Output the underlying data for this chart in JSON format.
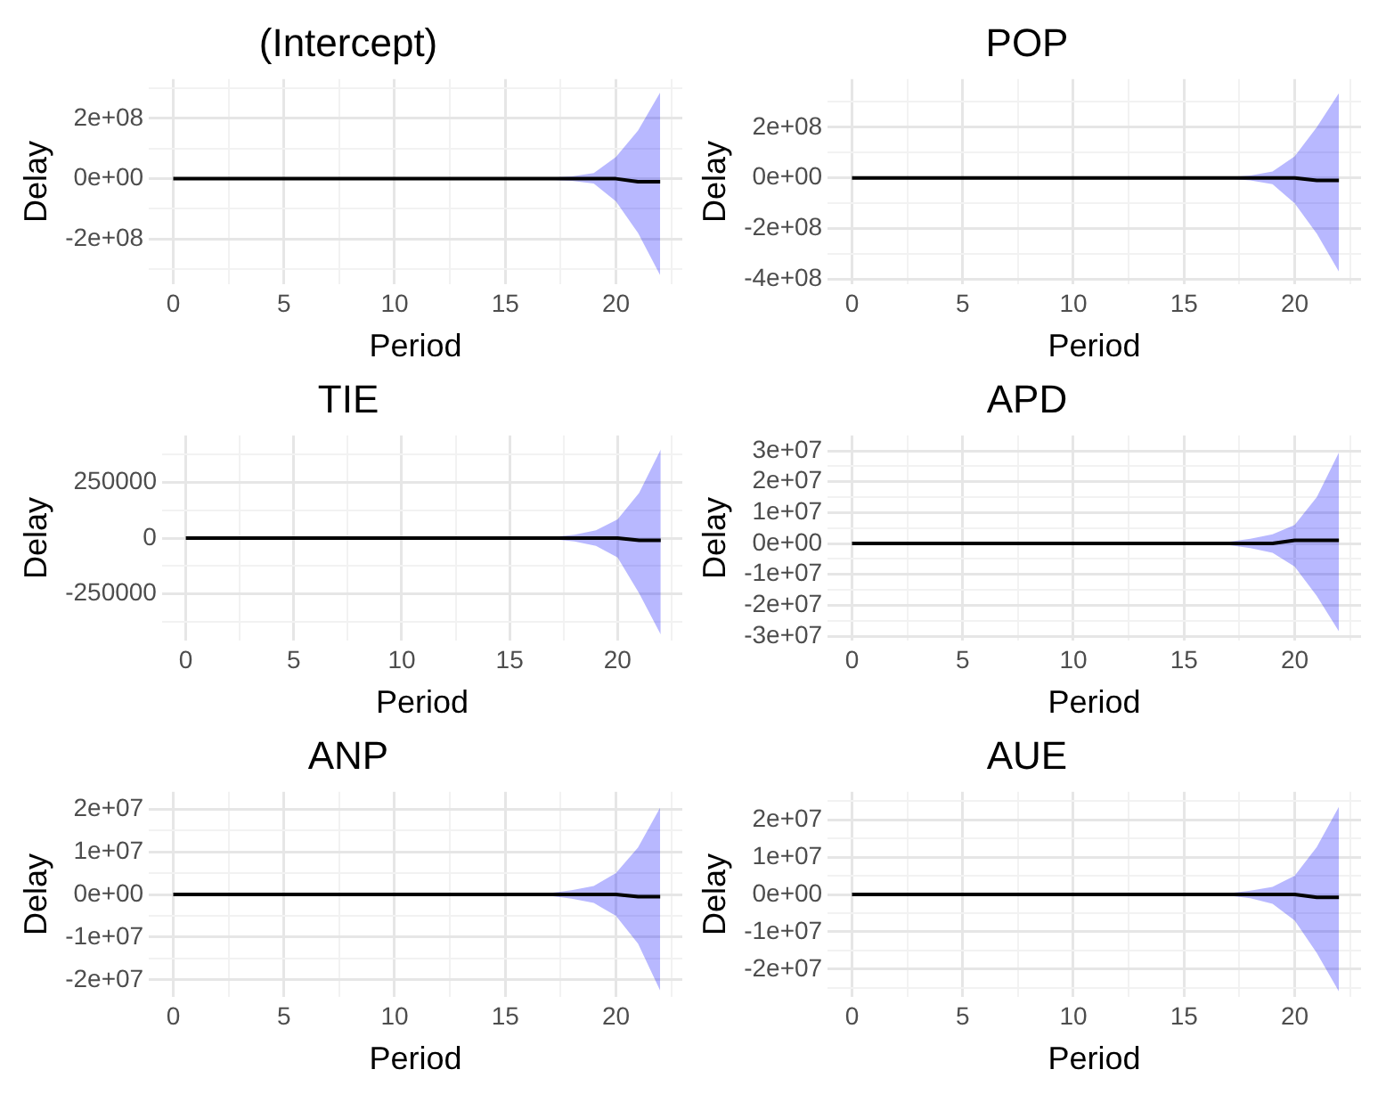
{
  "chart_data": [
    {
      "type": "line",
      "title": "(Intercept)",
      "xlabel": "Period",
      "ylabel": "Delay",
      "x": [
        0,
        1,
        2,
        3,
        4,
        5,
        6,
        7,
        8,
        9,
        10,
        11,
        12,
        13,
        14,
        15,
        16,
        17,
        18,
        19,
        20,
        21,
        22
      ],
      "xlim": [
        -1.1,
        23
      ],
      "ylim": [
        -350000000,
        330000000
      ],
      "xticks": [
        0,
        {
          "value": 2.5,
          "label": null
        },
        5,
        {
          "value": 7.5,
          "label": null
        },
        10,
        {
          "value": 12.5,
          "label": null
        },
        15,
        {
          "value": 17.5,
          "label": null
        },
        20,
        {
          "value": 22.5,
          "label": null
        }
      ],
      "yticks": [
        {
          "value": -300000000,
          "label": null
        },
        {
          "value": -200000000,
          "label": "-2e+08"
        },
        {
          "value": -100000000,
          "label": null
        },
        {
          "value": 0,
          "label": "0e+00"
        },
        {
          "value": 100000000,
          "label": null
        },
        {
          "value": 200000000,
          "label": "2e+08"
        },
        {
          "value": 300000000,
          "label": null
        }
      ],
      "grid": true,
      "marker": "none",
      "line_style": "solid",
      "series": [
        {
          "color": "#000000",
          "values": [
            0,
            0,
            0,
            0,
            0,
            0,
            0,
            0,
            0,
            0,
            0,
            0,
            0,
            0,
            0,
            0,
            0,
            0,
            0,
            0,
            0,
            -10000000,
            -10000000
          ],
          "lower": [
            0,
            0,
            0,
            0,
            0,
            0,
            0,
            0,
            0,
            0,
            0,
            0,
            0,
            0,
            0,
            0,
            0,
            -3000000,
            -7000000,
            -16000000,
            -75000000,
            -180000000,
            -320000000
          ],
          "upper": [
            0,
            0,
            0,
            0,
            0,
            0,
            0,
            0,
            0,
            0,
            0,
            0,
            0,
            0,
            0,
            0,
            0,
            3000000,
            8000000,
            19000000,
            72000000,
            160000000,
            286000000
          ]
        }
      ]
    },
    {
      "type": "line",
      "title": "POP",
      "xlabel": "Period",
      "ylabel": "Delay",
      "x": [
        0,
        1,
        2,
        3,
        4,
        5,
        6,
        7,
        8,
        9,
        10,
        11,
        12,
        13,
        14,
        15,
        16,
        17,
        18,
        19,
        20,
        21,
        22
      ],
      "xlim": [
        -1.1,
        23
      ],
      "ylim": [
        -420000000,
        390000000
      ],
      "xticks": [
        0,
        {
          "value": 2.5,
          "label": null
        },
        5,
        {
          "value": 7.5,
          "label": null
        },
        10,
        {
          "value": 12.5,
          "label": null
        },
        15,
        {
          "value": 17.5,
          "label": null
        },
        20,
        {
          "value": 22.5,
          "label": null
        }
      ],
      "yticks": [
        {
          "value": -400000000,
          "label": "-4e+08"
        },
        {
          "value": -300000000,
          "label": null
        },
        {
          "value": -200000000,
          "label": "-2e+08"
        },
        {
          "value": -100000000,
          "label": null
        },
        {
          "value": 0,
          "label": "0e+00"
        },
        {
          "value": 100000000,
          "label": null
        },
        {
          "value": 200000000,
          "label": "2e+08"
        },
        {
          "value": 300000000,
          "label": null
        }
      ],
      "grid": true,
      "marker": "none",
      "line_style": "solid",
      "series": [
        {
          "color": "#000000",
          "values": [
            0,
            0,
            0,
            0,
            0,
            0,
            0,
            0,
            0,
            0,
            0,
            0,
            0,
            0,
            0,
            0,
            0,
            0,
            0,
            0,
            0,
            -10000000,
            -10000000
          ],
          "lower": [
            0,
            0,
            0,
            0,
            0,
            0,
            0,
            0,
            0,
            0,
            0,
            0,
            0,
            0,
            0,
            0,
            0,
            -3000000,
            -10000000,
            -25000000,
            -100000000,
            -220000000,
            -370000000
          ],
          "upper": [
            0,
            0,
            0,
            0,
            0,
            0,
            0,
            0,
            0,
            0,
            0,
            0,
            0,
            0,
            0,
            0,
            0,
            3000000,
            10000000,
            25000000,
            85000000,
            200000000,
            335000000
          ]
        }
      ]
    },
    {
      "type": "line",
      "title": "TIE",
      "xlabel": "Period",
      "ylabel": "Delay",
      "x": [
        0,
        1,
        2,
        3,
        4,
        5,
        6,
        7,
        8,
        9,
        10,
        11,
        12,
        13,
        14,
        15,
        16,
        17,
        18,
        19,
        20,
        21,
        22
      ],
      "xlim": [
        -1.1,
        23
      ],
      "ylim": [
        -460000.0,
        460000
      ],
      "xticks": [
        0,
        {
          "value": 2.5,
          "label": null
        },
        5,
        {
          "value": 7.5,
          "label": null
        },
        10,
        {
          "value": 12.5,
          "label": null
        },
        15,
        {
          "value": 17.5,
          "label": null
        },
        20,
        {
          "value": 22.5,
          "label": null
        }
      ],
      "yticks": [
        {
          "value": -375000,
          "label": null
        },
        -250000,
        {
          "value": -125000,
          "label": null
        },
        0,
        {
          "value": 125000,
          "label": null
        },
        250000,
        {
          "value": 375000,
          "label": null
        }
      ],
      "grid": true,
      "marker": "none",
      "line_style": "solid",
      "series": [
        {
          "color": "#000000",
          "values": [
            0,
            0,
            0,
            0,
            0,
            0,
            0,
            0,
            0,
            0,
            0,
            0,
            0,
            0,
            0,
            0,
            0,
            0,
            0,
            0,
            0,
            -10000,
            -10000
          ],
          "lower": [
            0,
            0,
            0,
            0,
            0,
            0,
            0,
            0,
            0,
            0,
            0,
            0,
            0,
            0,
            0,
            0,
            0,
            -5000,
            -15000,
            -35000,
            -87000,
            -248000,
            -432000
          ],
          "upper": [
            0,
            0,
            0,
            0,
            0,
            0,
            0,
            0,
            0,
            0,
            0,
            0,
            0,
            0,
            0,
            0,
            0,
            5000,
            15000,
            35000,
            84000,
            203000,
            397000
          ]
        }
      ]
    },
    {
      "type": "line",
      "title": "APD",
      "xlabel": "Period",
      "ylabel": "Delay",
      "x": [
        0,
        1,
        2,
        3,
        4,
        5,
        6,
        7,
        8,
        9,
        10,
        11,
        12,
        13,
        14,
        15,
        16,
        17,
        18,
        19,
        20,
        21,
        22
      ],
      "xlim": [
        -1.1,
        23
      ],
      "ylim": [
        -31500000,
        35000000
      ],
      "xticks": [
        0,
        {
          "value": 2.5,
          "label": null
        },
        5,
        {
          "value": 7.5,
          "label": null
        },
        10,
        {
          "value": 12.5,
          "label": null
        },
        15,
        {
          "value": 17.5,
          "label": null
        },
        20,
        {
          "value": 22.5,
          "label": null
        }
      ],
      "yticks": [
        {
          "value": -30000000,
          "label": "-3e+07"
        },
        {
          "value": -25000000,
          "label": null
        },
        {
          "value": -20000000,
          "label": "-2e+07"
        },
        {
          "value": -15000000,
          "label": null
        },
        {
          "value": -10000000,
          "label": "-1e+07"
        },
        {
          "value": -5000000,
          "label": null
        },
        {
          "value": 0,
          "label": "0e+00"
        },
        {
          "value": 5000000,
          "label": null
        },
        {
          "value": 10000000,
          "label": "1e+07"
        },
        {
          "value": 15000000,
          "label": null
        },
        {
          "value": 20000000,
          "label": "2e+07"
        },
        {
          "value": 25000000,
          "label": null
        },
        {
          "value": 30000000,
          "label": "3e+07"
        }
      ],
      "grid": true,
      "marker": "none",
      "line_style": "solid",
      "series": [
        {
          "color": "#000000",
          "values": [
            0,
            0,
            0,
            0,
            0,
            0,
            0,
            0,
            0,
            0,
            0,
            0,
            0,
            0,
            0,
            0,
            0,
            0,
            0,
            0,
            1000000,
            1000000,
            1000000
          ],
          "lower": [
            0,
            0,
            0,
            0,
            0,
            0,
            0,
            0,
            0,
            0,
            0,
            0,
            0,
            0,
            0,
            0,
            0,
            -500000,
            -1500000,
            -3000000,
            -7500000,
            -17000000,
            -28500000
          ],
          "upper": [
            0,
            0,
            0,
            0,
            0,
            0,
            0,
            0,
            0,
            0,
            0,
            0,
            0,
            0,
            0,
            0,
            0,
            500000,
            1500000,
            3000000,
            6000000,
            15000000,
            29500000
          ]
        }
      ]
    },
    {
      "type": "line",
      "title": "ANP",
      "xlabel": "Period",
      "ylabel": "Delay",
      "x": [
        0,
        1,
        2,
        3,
        4,
        5,
        6,
        7,
        8,
        9,
        10,
        11,
        12,
        13,
        14,
        15,
        16,
        17,
        18,
        19,
        20,
        21,
        22
      ],
      "xlim": [
        -1.1,
        23
      ],
      "ylim": [
        -24000000,
        24000000
      ],
      "xticks": [
        0,
        {
          "value": 2.5,
          "label": null
        },
        5,
        {
          "value": 7.5,
          "label": null
        },
        10,
        {
          "value": 12.5,
          "label": null
        },
        15,
        {
          "value": 17.5,
          "label": null
        },
        20,
        {
          "value": 22.5,
          "label": null
        }
      ],
      "yticks": [
        {
          "value": -20000000,
          "label": "-2e+07"
        },
        {
          "value": -15000000,
          "label": null
        },
        {
          "value": -10000000,
          "label": "-1e+07"
        },
        {
          "value": -5000000,
          "label": null
        },
        {
          "value": 0,
          "label": "0e+00"
        },
        {
          "value": 5000000,
          "label": null
        },
        {
          "value": 10000000,
          "label": "1e+07"
        },
        {
          "value": 15000000,
          "label": null
        },
        {
          "value": 20000000,
          "label": "2e+07"
        }
      ],
      "grid": true,
      "marker": "none",
      "line_style": "solid",
      "series": [
        {
          "color": "#000000",
          "values": [
            0,
            0,
            0,
            0,
            0,
            0,
            0,
            0,
            0,
            0,
            0,
            0,
            0,
            0,
            0,
            0,
            0,
            0,
            0,
            0,
            0,
            -500000,
            -500000
          ],
          "lower": [
            0,
            0,
            0,
            0,
            0,
            0,
            0,
            0,
            0,
            0,
            0,
            0,
            0,
            0,
            0,
            0,
            0,
            -300000,
            -1000000,
            -2000000,
            -5000000,
            -11500000,
            -22500000
          ],
          "upper": [
            0,
            0,
            0,
            0,
            0,
            0,
            0,
            0,
            0,
            0,
            0,
            0,
            0,
            0,
            0,
            0,
            0,
            300000,
            1000000,
            2000000,
            5000000,
            11000000,
            20300000
          ]
        }
      ]
    },
    {
      "type": "line",
      "title": "AUE",
      "xlabel": "Period",
      "ylabel": "Delay",
      "x": [
        0,
        1,
        2,
        3,
        4,
        5,
        6,
        7,
        8,
        9,
        10,
        11,
        12,
        13,
        14,
        15,
        16,
        17,
        18,
        19,
        20,
        21,
        22
      ],
      "xlim": [
        -1.1,
        23
      ],
      "ylim": [
        -27500000,
        27500000
      ],
      "xticks": [
        0,
        {
          "value": 2.5,
          "label": null
        },
        5,
        {
          "value": 7.5,
          "label": null
        },
        10,
        {
          "value": 12.5,
          "label": null
        },
        15,
        {
          "value": 17.5,
          "label": null
        },
        20,
        {
          "value": 22.5,
          "label": null
        }
      ],
      "yticks": [
        {
          "value": -25000000,
          "label": null
        },
        {
          "value": -20000000,
          "label": "-2e+07"
        },
        {
          "value": -15000000,
          "label": null
        },
        {
          "value": -10000000,
          "label": "-1e+07"
        },
        {
          "value": -5000000,
          "label": null
        },
        {
          "value": 0,
          "label": "0e+00"
        },
        {
          "value": 5000000,
          "label": null
        },
        {
          "value": 10000000,
          "label": "1e+07"
        },
        {
          "value": 15000000,
          "label": null
        },
        {
          "value": 20000000,
          "label": "2e+07"
        },
        {
          "value": 25000000,
          "label": null
        }
      ],
      "grid": true,
      "marker": "none",
      "line_style": "solid",
      "series": [
        {
          "color": "#000000",
          "values": [
            0,
            0,
            0,
            0,
            0,
            0,
            0,
            0,
            0,
            0,
            0,
            0,
            0,
            0,
            0,
            0,
            0,
            0,
            0,
            0,
            0,
            -800000,
            -800000
          ],
          "lower": [
            0,
            0,
            0,
            0,
            0,
            0,
            0,
            0,
            0,
            0,
            0,
            0,
            0,
            0,
            0,
            0,
            0,
            -300000,
            -1000000,
            -2500000,
            -7000000,
            -15700000,
            -26000000
          ],
          "upper": [
            0,
            0,
            0,
            0,
            0,
            0,
            0,
            0,
            0,
            0,
            0,
            0,
            0,
            0,
            0,
            0,
            0,
            300000,
            1000000,
            2000000,
            5000000,
            12700000,
            23500000
          ]
        }
      ]
    }
  ]
}
